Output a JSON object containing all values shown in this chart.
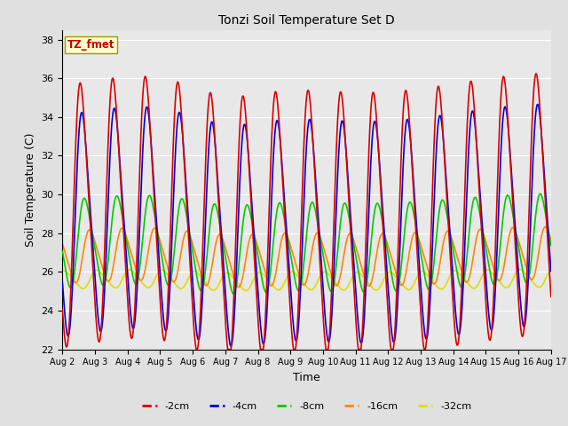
{
  "title": "Tonzi Soil Temperature Set D",
  "xlabel": "Time",
  "ylabel": "Soil Temperature (C)",
  "ylim": [
    22,
    38.5
  ],
  "xlim": [
    0,
    360
  ],
  "background_color": "#e0e0e0",
  "plot_bg_color": "#e8e8e8",
  "legend_label": "TZ_fmet",
  "legend_box_color": "#ffffcc",
  "legend_box_edge": "#999900",
  "legend_text_color": "#cc0000",
  "series_colors": {
    "-2cm": "#dd0000",
    "-4cm": "#0000dd",
    "-8cm": "#00cc00",
    "-16cm": "#ff8800",
    "-32cm": "#dddd00"
  },
  "yticks": [
    22,
    24,
    26,
    28,
    30,
    32,
    34,
    36,
    38
  ],
  "xtick_labels": [
    "Aug 2",
    "Aug 3",
    "Aug 4",
    "Aug 5",
    "Aug 6",
    "Aug 7",
    "Aug 8",
    "Aug 9",
    "Aug 10",
    "Aug 11",
    "Aug 12",
    "Aug 13",
    "Aug 14",
    "Aug 15",
    "Aug 16",
    "Aug 17"
  ],
  "xtick_positions": [
    0,
    24,
    48,
    72,
    96,
    120,
    144,
    168,
    192,
    216,
    240,
    264,
    288,
    312,
    336,
    360
  ]
}
